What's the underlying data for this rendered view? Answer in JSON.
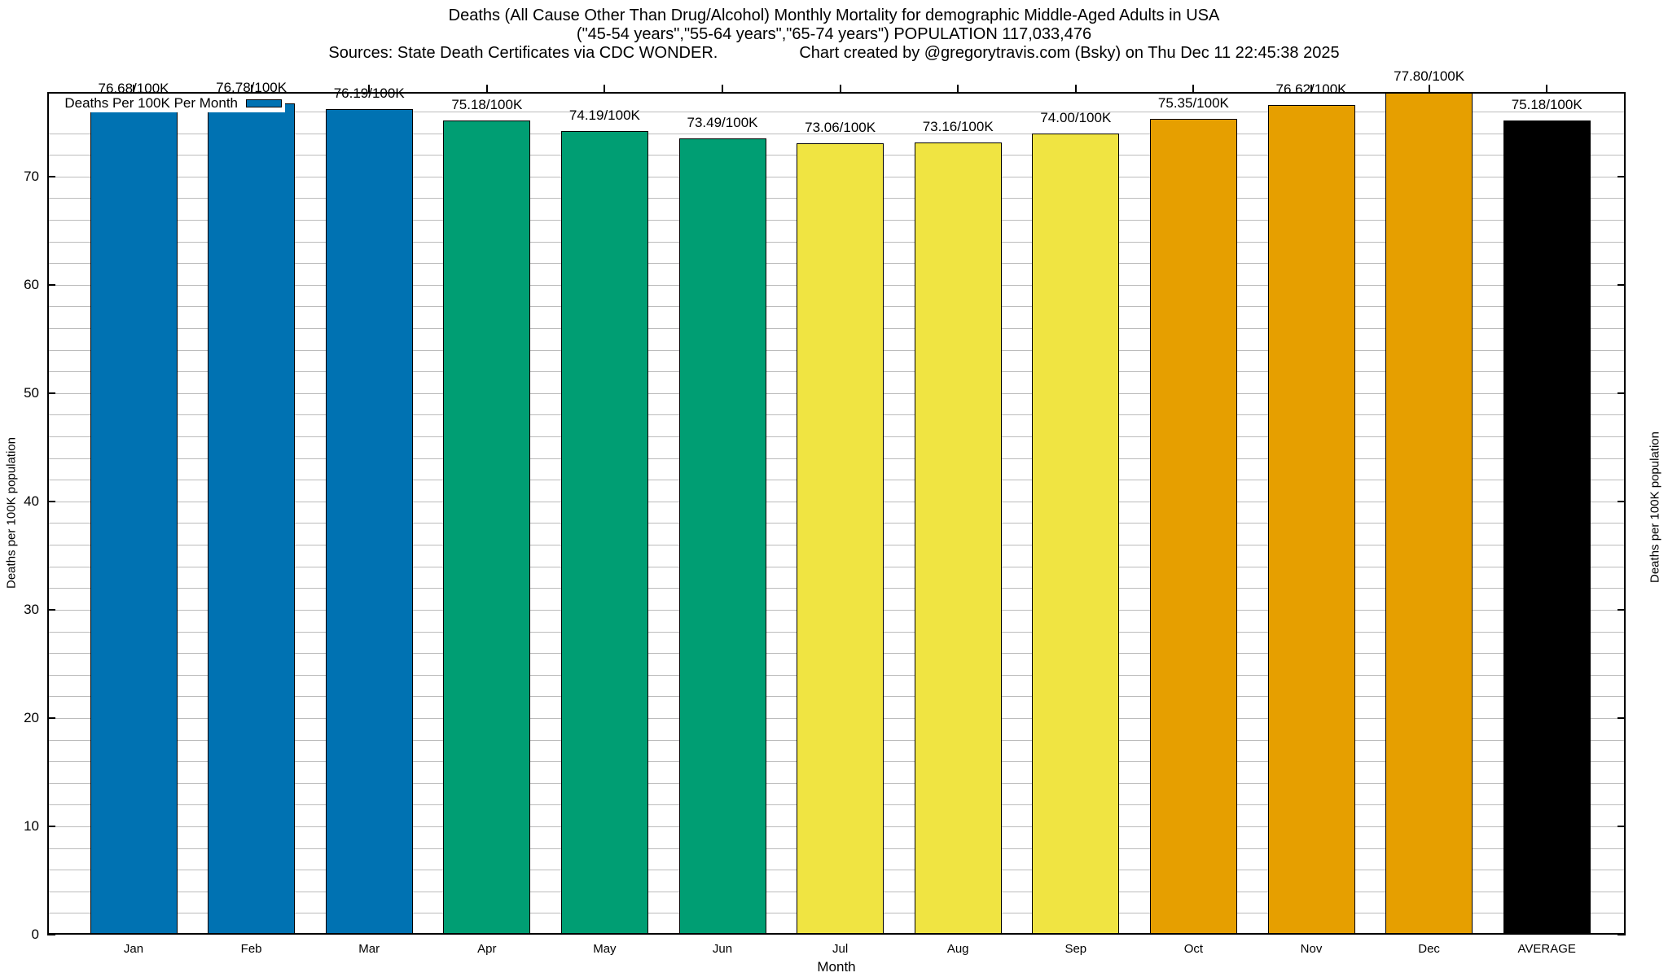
{
  "title": {
    "line1": "Deaths (All Cause Other Than Drug/Alcohol) Monthly Mortality for demographic Middle-Aged Adults in USA",
    "line2": "(\"45-54 years\",\"55-64 years\",\"65-74 years\") POPULATION 117,033,476",
    "sources": "Sources: State Death Certificates via CDC WONDER.",
    "credit": "Chart created by @gregorytravis.com (Bsky) on Thu Dec 11 22:45:38 2025"
  },
  "legend": {
    "label": "Deaths Per 100K Per Month",
    "swatch_color": "#0072B2",
    "position": "top-left inside plot"
  },
  "axes": {
    "x_label": "Month",
    "y_left_label": "Deaths per 100K population",
    "y_right_label": "Deaths per 100K population"
  },
  "colors": {
    "blue": "#0072B2",
    "green": "#009E73",
    "yellow": "#F0E442",
    "orange": "#E69F00",
    "black": "#000000",
    "gridline": "#bcbcbc"
  },
  "chart_data": {
    "type": "bar",
    "title": "Deaths (All Cause Other Than Drug/Alcohol) Monthly Mortality for Middle-Aged Adults in USA",
    "xlabel": "Month",
    "ylabel": "Deaths per 100K population",
    "categories": [
      "Jan",
      "Feb",
      "Mar",
      "Apr",
      "May",
      "Jun",
      "Jul",
      "Aug",
      "Sep",
      "Oct",
      "Nov",
      "Dec",
      "AVERAGE"
    ],
    "values": [
      76.68,
      76.78,
      76.19,
      75.18,
      74.19,
      73.49,
      73.06,
      73.16,
      74.0,
      75.35,
      76.62,
      77.8,
      75.18
    ],
    "bar_colors": [
      "#0072B2",
      "#0072B2",
      "#0072B2",
      "#009E73",
      "#009E73",
      "#009E73",
      "#F0E442",
      "#F0E442",
      "#F0E442",
      "#E69F00",
      "#E69F00",
      "#E69F00",
      "#000000"
    ],
    "value_label_suffix": "/100K",
    "ylim": [
      0,
      77.8
    ],
    "y_major_ticks": [
      0,
      10,
      20,
      30,
      40,
      50,
      60,
      70
    ],
    "y_minor_grid_step": 2,
    "grid": "horizontal gridlines every 2 units, on",
    "legend_position": "top-left inside",
    "legend_label": "Deaths Per 100K Per Month"
  }
}
